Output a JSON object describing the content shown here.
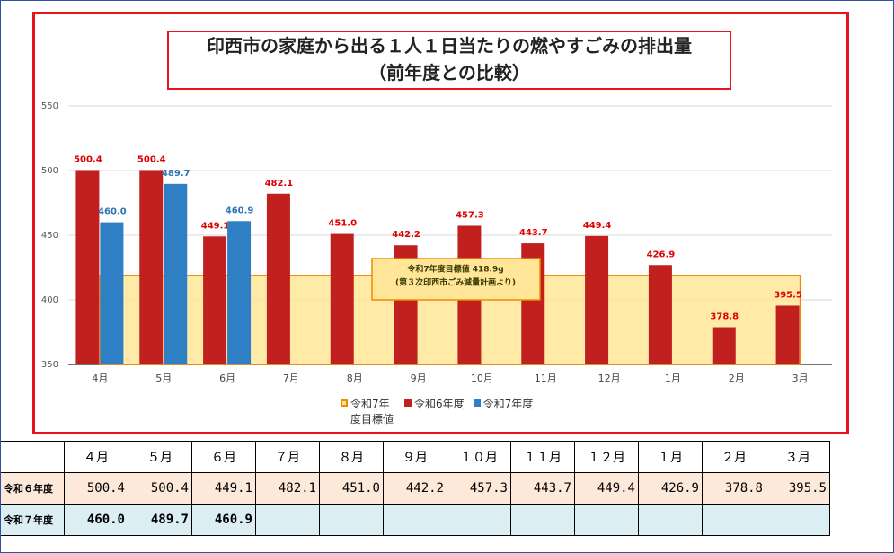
{
  "chart_data": {
    "type": "bar",
    "title": "印西市の家庭から出る１人１日当たりの燃やすごみの排出量",
    "subtitle": "（前年度との比較）",
    "categories": [
      "4月",
      "5月",
      "6月",
      "7月",
      "8月",
      "9月",
      "10月",
      "11月",
      "12月",
      "1月",
      "2月",
      "3月"
    ],
    "series": [
      {
        "name": "令和6年度",
        "color": "#c0211f",
        "label_color": "#e00000",
        "values": [
          500.4,
          500.4,
          449.1,
          482.1,
          451.0,
          442.2,
          457.3,
          443.7,
          449.4,
          426.9,
          378.8,
          395.5
        ],
        "value_labels": [
          "500.4",
          "500.4",
          "449.1",
          "482.1",
          "451.0",
          "442.2",
          "457.3",
          "443.7",
          "449.4",
          "426.9",
          "378.8",
          "395.5"
        ]
      },
      {
        "name": "令和7年度",
        "color": "#2e7fc4",
        "label_color": "#2e75b6",
        "values": [
          460.0,
          489.7,
          460.9,
          null,
          null,
          null,
          null,
          null,
          null,
          null,
          null,
          null
        ],
        "value_labels": [
          "460.0",
          "489.7",
          "460.9",
          null,
          null,
          null,
          null,
          null,
          null,
          null,
          null,
          null
        ]
      }
    ],
    "target": {
      "name": "令和7年度目標値",
      "value": 418.9,
      "color": "#ffe699",
      "border": "#f08c00"
    },
    "annotation": [
      "令和7年度目標値 418.9g",
      "(第３次印西市ごみ減量計画より)"
    ],
    "ylim": [
      350,
      550
    ],
    "yticks": [
      350,
      400,
      450,
      500,
      550
    ],
    "grid": true
  },
  "table": {
    "header": [
      "４月",
      "５月",
      "６月",
      "７月",
      "８月",
      "９月",
      "１０月",
      "１１月",
      "１２月",
      "１月",
      "２月",
      "３月"
    ],
    "rows": [
      {
        "label": "令和６年度",
        "cells": [
          "500.4",
          "500.4",
          "449.1",
          "482.1",
          "451.0",
          "442.2",
          "457.3",
          "443.7",
          "449.4",
          "426.9",
          "378.8",
          "395.5"
        ]
      },
      {
        "label": "令和７年度",
        "cells": [
          "460.0",
          "489.7",
          "460.9"
        ]
      }
    ]
  }
}
